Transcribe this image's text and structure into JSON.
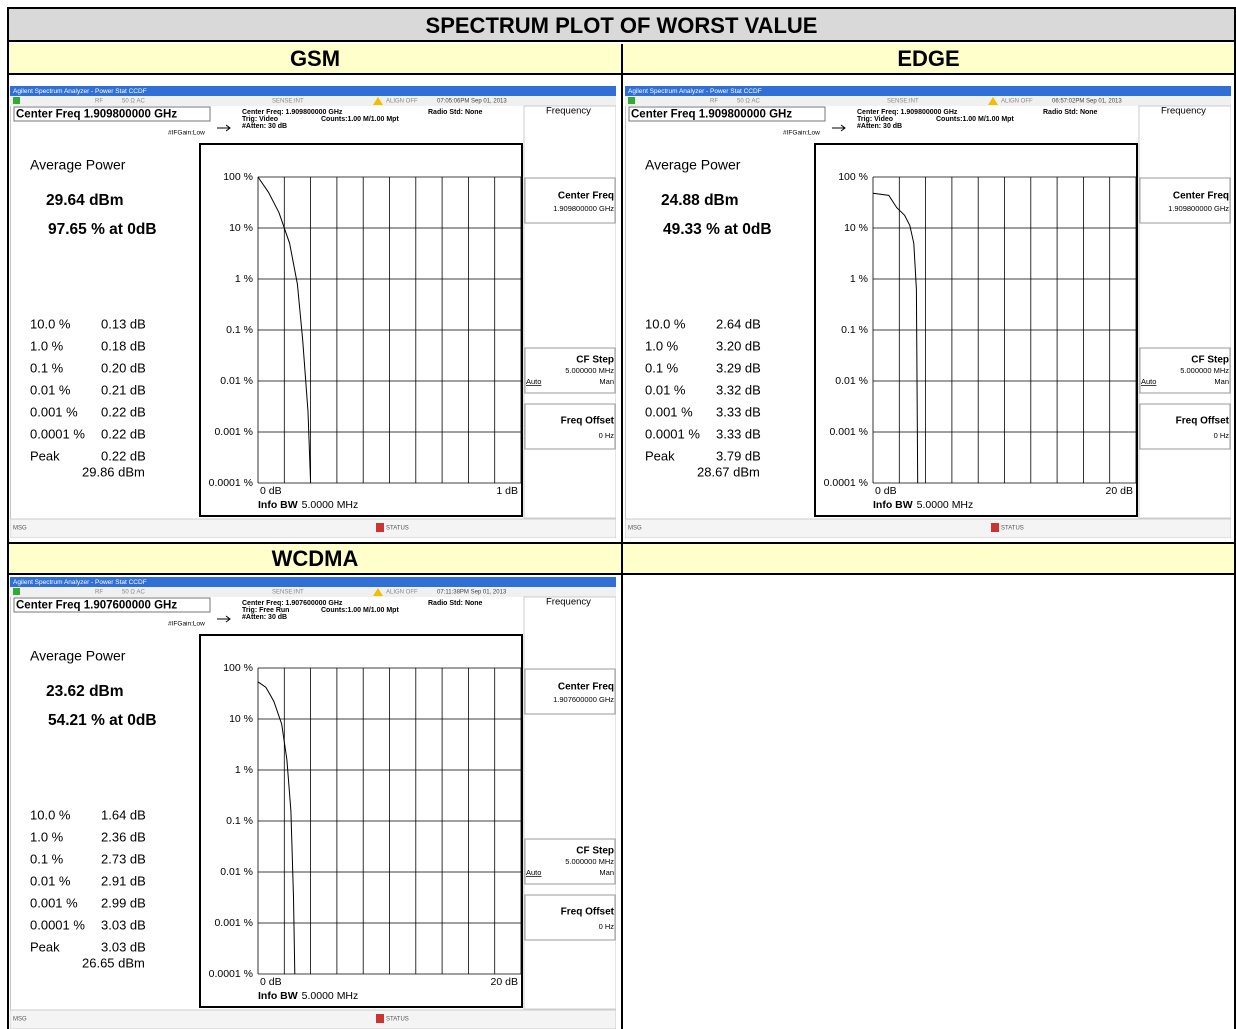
{
  "title": "SPECTRUM PLOT OF WORST VALUE",
  "headers": [
    "GSM",
    "EDGE",
    "WCDMA"
  ],
  "panels": [
    {
      "app": "Agilent Spectrum Analyzer - Power Stat CCDF",
      "rf": "RF",
      "input": "50 Ω  AC",
      "sense": "SENSE:INT",
      "align": "ALIGN OFF",
      "timestamp": "07:05:06PM Sep 01, 2013",
      "center_freq": "Center Freq 1.909800000 GHz",
      "center_freq_detail": "Center Freq: 1.909800000 GHz",
      "trig": "Trig: Video",
      "atten": "#Atten: 30 dB",
      "ifgain": "#IFGain:Low",
      "radio_std": "Radio Std: None",
      "counts": "Counts:1.00 M/1.00 Mpt",
      "average_power_label": "Average Power",
      "average_power": "29.64 dBm",
      "at_0db": "97.65 % at 0dB",
      "stats": [
        [
          "10.0 %",
          "0.13 dB"
        ],
        [
          "1.0 %",
          "0.18 dB"
        ],
        [
          "0.1 %",
          "0.20 dB"
        ],
        [
          "0.01 %",
          "0.21 dB"
        ],
        [
          "0.001 %",
          "0.22 dB"
        ],
        [
          "0.0001 %",
          "0.22 dB"
        ],
        [
          "Peak",
          "0.22 dB"
        ]
      ],
      "peak_power": "29.86 dBm",
      "y_labels": [
        "100 %",
        "10 %",
        "1 %",
        "0.1 %",
        "0.01 %",
        "0.001 %",
        "0.0001 %"
      ],
      "x_start": "0 dB",
      "x_end": "1 dB",
      "info_bw_label": "Info BW",
      "info_bw": "5.0000 MHz",
      "softkeys": {
        "frequency": "Frequency",
        "center_freq": "Center Freq",
        "center_freq_value": "1.909800000 GHz",
        "cf_step": "CF Step",
        "cf_step_value": "5.000000 MHz",
        "auto": "Auto",
        "man": "Man",
        "freq_offset": "Freq Offset",
        "freq_offset_value": "0 Hz"
      },
      "msg": "MSG",
      "status": "STATUS"
    },
    {
      "app": "Agilent Spectrum Analyzer - Power Stat CCDF",
      "rf": "RF",
      "input": "50 Ω  AC",
      "sense": "SENSE:INT",
      "align": "ALIGN OFF",
      "timestamp": "06:57:02PM Sep 01, 2013",
      "center_freq": "Center Freq 1.909800000 GHz",
      "center_freq_detail": "Center Freq: 1.909800000 GHz",
      "trig": "Trig: Video",
      "atten": "#Atten: 30 dB",
      "ifgain": "#IFGain:Low",
      "radio_std": "Radio Std: None",
      "counts": "Counts:1.00 M/1.00 Mpt",
      "average_power_label": "Average Power",
      "average_power": "24.88 dBm",
      "at_0db": "49.33 % at 0dB",
      "stats": [
        [
          "10.0 %",
          "2.64 dB"
        ],
        [
          "1.0 %",
          "3.20 dB"
        ],
        [
          "0.1 %",
          "3.29 dB"
        ],
        [
          "0.01 %",
          "3.32 dB"
        ],
        [
          "0.001 %",
          "3.33 dB"
        ],
        [
          "0.0001 %",
          "3.33 dB"
        ],
        [
          "Peak",
          "3.79 dB"
        ]
      ],
      "peak_power": "28.67 dBm",
      "y_labels": [
        "100 %",
        "10 %",
        "1 %",
        "0.1 %",
        "0.01 %",
        "0.001 %",
        "0.0001 %"
      ],
      "x_start": "0 dB",
      "x_end": "20 dB",
      "info_bw_label": "Info BW",
      "info_bw": "5.0000 MHz",
      "softkeys": {
        "frequency": "Frequency",
        "center_freq": "Center Freq",
        "center_freq_value": "1.909800000 GHz",
        "cf_step": "CF Step",
        "cf_step_value": "5.000000 MHz",
        "auto": "Auto",
        "man": "Man",
        "freq_offset": "Freq Offset",
        "freq_offset_value": "0 Hz"
      },
      "msg": "MSG",
      "status": "STATUS"
    },
    {
      "app": "Agilent Spectrum Analyzer - Power Stat CCDF",
      "rf": "RF",
      "input": "50 Ω  AC",
      "sense": "SENSE:INT",
      "align": "ALIGN OFF",
      "timestamp": "07:11:38PM Sep 01, 2013",
      "center_freq": "Center Freq 1.907600000 GHz",
      "center_freq_detail": "Center Freq: 1.907600000 GHz",
      "trig": "Trig: Free Run",
      "atten": "#Atten: 30 dB",
      "ifgain": "#IFGain:Low",
      "radio_std": "Radio Std: None",
      "counts": "Counts:1.00 M/1.00 Mpt",
      "average_power_label": "Average Power",
      "average_power": "23.62 dBm",
      "at_0db": "54.21 % at 0dB",
      "stats": [
        [
          "10.0 %",
          "1.64 dB"
        ],
        [
          "1.0 %",
          "2.36 dB"
        ],
        [
          "0.1 %",
          "2.73 dB"
        ],
        [
          "0.01 %",
          "2.91 dB"
        ],
        [
          "0.001 %",
          "2.99 dB"
        ],
        [
          "0.0001 %",
          "3.03 dB"
        ],
        [
          "Peak",
          "3.03 dB"
        ]
      ],
      "peak_power": "26.65 dBm",
      "y_labels": [
        "100 %",
        "10 %",
        "1 %",
        "0.1 %",
        "0.01 %",
        "0.001 %",
        "0.0001 %"
      ],
      "x_start": "0 dB",
      "x_end": "20 dB",
      "info_bw_label": "Info BW",
      "info_bw": "5.0000 MHz",
      "softkeys": {
        "frequency": "Frequency",
        "center_freq": "Center Freq",
        "center_freq_value": "1.907600000 GHz",
        "cf_step": "CF Step",
        "cf_step_value": "5.000000 MHz",
        "auto": "Auto",
        "man": "Man",
        "freq_offset": "Freq Offset",
        "freq_offset_value": "0 Hz"
      },
      "msg": "MSG",
      "status": "STATUS"
    }
  ]
}
